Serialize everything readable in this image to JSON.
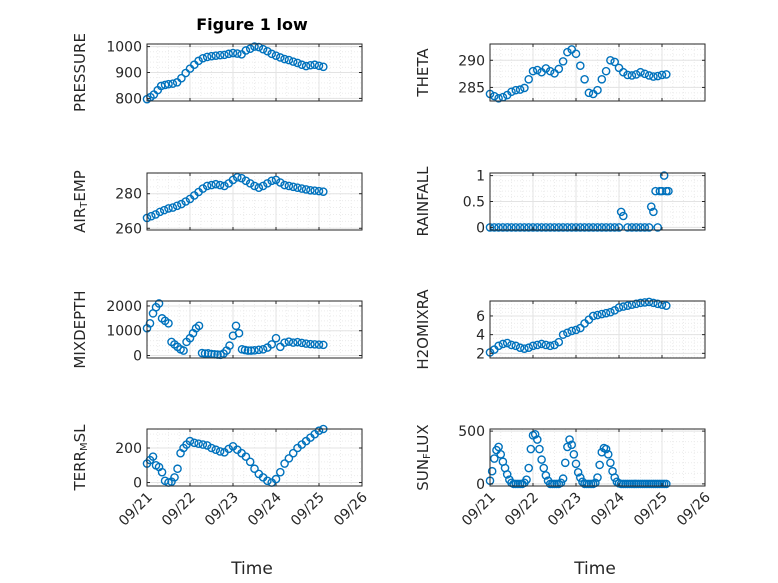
{
  "figure": {
    "title": "Figure 1 low",
    "xlabel": "Time"
  },
  "colors": {
    "marker": "#0072BD",
    "grid": "#e3e3e3",
    "axis": "#262626"
  },
  "chart_data": [
    {
      "type": "scatter",
      "ylabel_parts": [
        {
          "t": "PRESSURE",
          "sub": false
        }
      ],
      "ylim": [
        790,
        1010
      ],
      "yticks": [
        800,
        900,
        1000
      ],
      "ytick_labels": [
        "800",
        "900",
        "1000"
      ],
      "x": [
        0.0,
        0.08,
        0.16,
        0.25,
        0.33,
        0.42,
        0.5,
        0.6,
        0.7,
        0.8,
        0.9,
        1.0,
        1.1,
        1.2,
        1.3,
        1.4,
        1.5,
        1.6,
        1.7,
        1.8,
        1.9,
        2.0,
        2.1,
        2.2,
        2.3,
        2.4,
        2.5,
        2.6,
        2.7,
        2.8,
        2.9,
        3.0,
        3.1,
        3.2,
        3.3,
        3.4,
        3.5,
        3.6,
        3.7,
        3.8,
        3.9,
        4.0,
        4.1
      ],
      "y": [
        797,
        805,
        815,
        832,
        848,
        852,
        855,
        857,
        862,
        878,
        898,
        915,
        930,
        945,
        955,
        960,
        963,
        965,
        967,
        968,
        972,
        975,
        973,
        970,
        985,
        992,
        1000,
        998,
        990,
        982,
        972,
        965,
        958,
        952,
        948,
        942,
        937,
        930,
        925,
        928,
        930,
        926,
        922
      ]
    },
    {
      "type": "scatter",
      "ylabel_parts": [
        {
          "t": "THETA",
          "sub": false
        }
      ],
      "ylim": [
        282.5,
        293
      ],
      "yticks": [
        285,
        290
      ],
      "ytick_labels": [
        "285",
        "290"
      ],
      "x": [
        0.0,
        0.1,
        0.2,
        0.3,
        0.4,
        0.5,
        0.6,
        0.7,
        0.8,
        0.9,
        1.0,
        1.1,
        1.2,
        1.3,
        1.4,
        1.5,
        1.6,
        1.7,
        1.8,
        1.9,
        2.0,
        2.1,
        2.2,
        2.3,
        2.4,
        2.5,
        2.6,
        2.7,
        2.8,
        2.9,
        3.0,
        3.1,
        3.2,
        3.3,
        3.4,
        3.5,
        3.6,
        3.7,
        3.8,
        3.9,
        4.0,
        4.1
      ],
      "y": [
        283.8,
        283.4,
        283.0,
        283.2,
        283.6,
        284.2,
        284.5,
        284.6,
        284.9,
        286.5,
        288.0,
        288.2,
        287.8,
        288.5,
        288.0,
        287.6,
        288.4,
        289.8,
        291.5,
        292.0,
        291.2,
        289.0,
        286.5,
        284.0,
        283.8,
        284.5,
        286.5,
        288.0,
        290.0,
        289.7,
        288.6,
        287.8,
        287.3,
        287.2,
        287.4,
        287.8,
        287.5,
        287.2,
        287.0,
        287.1,
        287.3,
        287.4
      ]
    },
    {
      "type": "scatter",
      "ylabel_parts": [
        {
          "t": "AIR",
          "sub": false
        },
        {
          "t": "T",
          "sub": true
        },
        {
          "t": "EMP",
          "sub": false
        }
      ],
      "ylim": [
        259,
        292
      ],
      "yticks": [
        260,
        280
      ],
      "ytick_labels": [
        "260",
        "280"
      ],
      "x": [
        0.0,
        0.1,
        0.2,
        0.3,
        0.4,
        0.5,
        0.6,
        0.7,
        0.8,
        0.9,
        1.0,
        1.1,
        1.2,
        1.3,
        1.4,
        1.5,
        1.6,
        1.7,
        1.8,
        1.9,
        2.0,
        2.1,
        2.2,
        2.3,
        2.4,
        2.5,
        2.6,
        2.7,
        2.8,
        2.9,
        3.0,
        3.1,
        3.2,
        3.3,
        3.4,
        3.5,
        3.6,
        3.7,
        3.8,
        3.9,
        4.0,
        4.1
      ],
      "y": [
        266,
        267,
        268,
        269.5,
        270.5,
        271.5,
        272,
        273,
        274,
        275.5,
        277,
        279,
        281,
        283,
        284.5,
        285,
        285.5,
        285,
        284.5,
        286,
        288,
        289.5,
        289,
        287.5,
        286,
        284.5,
        283.5,
        284.5,
        286,
        287.5,
        288,
        286.5,
        285,
        284.5,
        284,
        283.5,
        283,
        282.5,
        282,
        281.8,
        281.5,
        281.2
      ]
    },
    {
      "type": "scatter",
      "ylabel_parts": [
        {
          "t": "RAINFALL",
          "sub": false
        }
      ],
      "ylim": [
        -0.05,
        1.05
      ],
      "yticks": [
        0,
        0.5,
        1
      ],
      "ytick_labels": [
        "0",
        "0.5",
        "1"
      ],
      "x": [
        0.0,
        0.1,
        0.2,
        0.3,
        0.4,
        0.5,
        0.6,
        0.7,
        0.8,
        0.9,
        1.0,
        1.1,
        1.2,
        1.3,
        1.4,
        1.5,
        1.6,
        1.7,
        1.8,
        1.9,
        2.0,
        2.1,
        2.2,
        2.3,
        2.4,
        2.5,
        2.6,
        2.7,
        2.8,
        2.9,
        3.0,
        3.05,
        3.1,
        3.2,
        3.3,
        3.4,
        3.5,
        3.6,
        3.7,
        3.75,
        3.8,
        3.85,
        3.9,
        3.95,
        4.0,
        4.05,
        4.1,
        4.15
      ],
      "y": [
        0,
        0,
        0,
        0,
        0,
        0,
        0,
        0,
        0,
        0,
        0,
        0,
        0,
        0,
        0,
        0,
        0,
        0,
        0,
        0,
        0,
        0,
        0,
        0,
        0,
        0,
        0,
        0,
        0,
        0,
        0,
        0.3,
        0.22,
        0,
        0,
        0,
        0,
        0,
        0,
        0.4,
        0.3,
        0.7,
        0,
        0.7,
        0.7,
        1.0,
        0.7,
        0.7
      ]
    },
    {
      "type": "scatter",
      "ylabel_parts": [
        {
          "t": "MIXDEPTH",
          "sub": false
        }
      ],
      "ylim": [
        -100,
        2200
      ],
      "yticks": [
        0,
        1000,
        2000
      ],
      "ytick_labels": [
        "0",
        "1000",
        "2000"
      ],
      "x": [
        0.0,
        0.07,
        0.14,
        0.21,
        0.28,
        0.35,
        0.42,
        0.5,
        0.57,
        0.64,
        0.71,
        0.78,
        0.85,
        0.92,
        1.0,
        1.07,
        1.14,
        1.21,
        1.28,
        1.35,
        1.42,
        1.5,
        1.57,
        1.64,
        1.71,
        1.78,
        1.85,
        1.92,
        2.0,
        2.07,
        2.14,
        2.21,
        2.28,
        2.35,
        2.42,
        2.5,
        2.6,
        2.7,
        2.8,
        2.9,
        3.0,
        3.1,
        3.2,
        3.3,
        3.4,
        3.5,
        3.6,
        3.7,
        3.8,
        3.9,
        4.0,
        4.1
      ],
      "y": [
        1100,
        1300,
        1700,
        1950,
        2100,
        1500,
        1400,
        1300,
        550,
        450,
        350,
        250,
        200,
        550,
        700,
        900,
        1100,
        1200,
        100,
        80,
        90,
        60,
        50,
        40,
        30,
        80,
        200,
        400,
        800,
        1200,
        900,
        250,
        220,
        200,
        200,
        210,
        230,
        250,
        320,
        450,
        700,
        350,
        520,
        560,
        520,
        540,
        510,
        480,
        460,
        450,
        440,
        430
      ]
    },
    {
      "type": "scatter",
      "ylabel_parts": [
        {
          "t": "H2OMIXRA",
          "sub": false
        }
      ],
      "ylim": [
        1.5,
        7.6
      ],
      "yticks": [
        2,
        4,
        6
      ],
      "ytick_labels": [
        "2",
        "4",
        "6"
      ],
      "x": [
        0.0,
        0.1,
        0.2,
        0.3,
        0.4,
        0.5,
        0.6,
        0.7,
        0.8,
        0.9,
        1.0,
        1.1,
        1.2,
        1.3,
        1.4,
        1.5,
        1.6,
        1.7,
        1.8,
        1.9,
        2.0,
        2.1,
        2.2,
        2.3,
        2.4,
        2.5,
        2.6,
        2.7,
        2.8,
        2.9,
        3.0,
        3.1,
        3.2,
        3.3,
        3.4,
        3.5,
        3.6,
        3.7,
        3.8,
        3.9,
        4.0,
        4.1
      ],
      "y": [
        2.1,
        2.4,
        2.8,
        3.0,
        3.1,
        2.9,
        2.8,
        2.6,
        2.5,
        2.6,
        2.8,
        2.9,
        3.0,
        2.9,
        2.8,
        2.9,
        3.2,
        4.0,
        4.2,
        4.4,
        4.5,
        4.7,
        5.2,
        5.6,
        6.0,
        6.1,
        6.2,
        6.3,
        6.4,
        6.6,
        6.9,
        7.0,
        7.1,
        7.2,
        7.3,
        7.4,
        7.45,
        7.5,
        7.4,
        7.3,
        7.2,
        7.1
      ]
    },
    {
      "type": "scatter",
      "ylabel_parts": [
        {
          "t": "TERR",
          "sub": false
        },
        {
          "t": "M",
          "sub": true
        },
        {
          "t": "SL",
          "sub": false
        }
      ],
      "ylim": [
        -20,
        310
      ],
      "yticks": [
        0,
        200
      ],
      "ytick_labels": [
        "0",
        "200"
      ],
      "x": [
        0.0,
        0.07,
        0.14,
        0.21,
        0.28,
        0.35,
        0.42,
        0.5,
        0.57,
        0.64,
        0.71,
        0.78,
        0.85,
        0.92,
        1.0,
        1.1,
        1.2,
        1.3,
        1.4,
        1.5,
        1.6,
        1.7,
        1.8,
        1.9,
        2.0,
        2.1,
        2.2,
        2.3,
        2.4,
        2.5,
        2.6,
        2.7,
        2.8,
        2.9,
        3.0,
        3.1,
        3.2,
        3.3,
        3.4,
        3.5,
        3.6,
        3.7,
        3.8,
        3.9,
        4.0,
        4.1
      ],
      "y": [
        110,
        130,
        150,
        100,
        90,
        60,
        10,
        0,
        5,
        30,
        80,
        170,
        200,
        220,
        240,
        230,
        225,
        220,
        215,
        200,
        190,
        180,
        175,
        195,
        210,
        190,
        170,
        150,
        120,
        80,
        50,
        30,
        10,
        0,
        20,
        60,
        110,
        140,
        170,
        200,
        220,
        240,
        260,
        280,
        300,
        310
      ]
    },
    {
      "type": "scatter",
      "ylabel_parts": [
        {
          "t": "SUN",
          "sub": false
        },
        {
          "t": "F",
          "sub": true
        },
        {
          "t": "LUX",
          "sub": false
        }
      ],
      "ylim": [
        -20,
        520
      ],
      "yticks": [
        0,
        500
      ],
      "ytick_labels": [
        "0",
        "500"
      ],
      "x": [
        0.0,
        0.05,
        0.1,
        0.15,
        0.2,
        0.25,
        0.3,
        0.35,
        0.4,
        0.45,
        0.5,
        0.55,
        0.6,
        0.65,
        0.7,
        0.75,
        0.8,
        0.85,
        0.9,
        0.95,
        1.0,
        1.05,
        1.1,
        1.15,
        1.2,
        1.25,
        1.3,
        1.35,
        1.4,
        1.45,
        1.5,
        1.55,
        1.6,
        1.65,
        1.7,
        1.75,
        1.8,
        1.85,
        1.9,
        1.95,
        2.0,
        2.05,
        2.1,
        2.15,
        2.2,
        2.25,
        2.3,
        2.35,
        2.4,
        2.45,
        2.5,
        2.55,
        2.6,
        2.65,
        2.7,
        2.75,
        2.8,
        2.85,
        2.9,
        2.95,
        3.0,
        3.05,
        3.1,
        3.15,
        3.2,
        3.25,
        3.3,
        3.35,
        3.4,
        3.45,
        3.5,
        3.55,
        3.6,
        3.65,
        3.7,
        3.75,
        3.8,
        3.85,
        3.9,
        3.95,
        4.0,
        4.05,
        4.1
      ],
      "y": [
        30,
        120,
        240,
        320,
        350,
        280,
        210,
        150,
        90,
        40,
        10,
        0,
        0,
        0,
        0,
        0,
        10,
        40,
        150,
        330,
        460,
        470,
        420,
        330,
        230,
        150,
        80,
        30,
        0,
        0,
        0,
        0,
        0,
        10,
        50,
        200,
        350,
        420,
        370,
        280,
        190,
        110,
        60,
        20,
        0,
        0,
        0,
        0,
        0,
        10,
        60,
        180,
        300,
        340,
        330,
        280,
        200,
        120,
        60,
        20,
        5,
        0,
        0,
        0,
        0,
        0,
        0,
        0,
        0,
        0,
        0,
        0,
        0,
        0,
        0,
        0,
        0,
        0,
        0,
        0,
        0,
        0,
        0
      ]
    }
  ],
  "xaxis": {
    "xlim": [
      0,
      5
    ],
    "ticks": [
      0,
      1,
      2,
      3,
      4,
      5
    ],
    "tick_labels": [
      "09/21",
      "09/22",
      "09/23",
      "09/24",
      "09/25",
      "09/26"
    ]
  }
}
